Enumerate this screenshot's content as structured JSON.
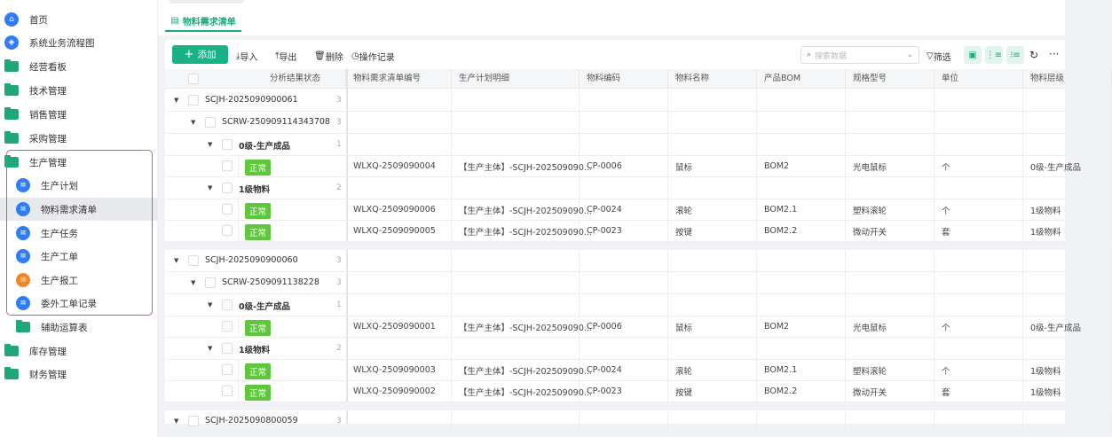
{
  "sidebar": {
    "items": [
      {
        "label": "首页",
        "icon": "home-icon",
        "type": "circle",
        "color": "#2f7df6",
        "symbol": "⌂"
      },
      {
        "label": "系统业务流程图",
        "icon": "box-icon",
        "type": "circle",
        "color": "#2f7df6",
        "symbol": "◈"
      },
      {
        "label": "经营看板",
        "icon": "folder-icon",
        "type": "folder"
      },
      {
        "label": "技术管理",
        "icon": "folder-icon",
        "type": "folder"
      },
      {
        "label": "销售管理",
        "icon": "folder-icon",
        "type": "folder"
      },
      {
        "label": "采购管理",
        "icon": "folder-icon",
        "type": "folder"
      },
      {
        "label": "生产管理",
        "icon": "folder-icon",
        "type": "folder"
      },
      {
        "label": "生产计划",
        "icon": "document-icon",
        "type": "sub",
        "color": "#2f7df6",
        "symbol": "≡"
      },
      {
        "label": "物料需求清单",
        "icon": "document-icon",
        "type": "sub",
        "color": "#2f7df6",
        "symbol": "≡",
        "active": true
      },
      {
        "label": "生产任务",
        "icon": "document-icon",
        "type": "sub",
        "color": "#2f7df6",
        "symbol": "≡"
      },
      {
        "label": "生产工单",
        "icon": "document-icon",
        "type": "sub",
        "color": "#2f7df6",
        "symbol": "≡"
      },
      {
        "label": "生产报工",
        "icon": "document-icon",
        "type": "sub",
        "color": "#f0882a",
        "symbol": "≡"
      },
      {
        "label": "委外工单记录",
        "icon": "document-icon",
        "type": "sub",
        "color": "#2f7df6",
        "symbol": "≡"
      },
      {
        "label": "辅助运算表",
        "icon": "folder-icon",
        "type": "subfolder"
      },
      {
        "label": "库存管理",
        "icon": "folder-icon",
        "type": "folder"
      },
      {
        "label": "财务管理",
        "icon": "folder-icon",
        "type": "folder"
      }
    ]
  },
  "tab": {
    "label": "物料需求清单"
  },
  "toolbar": {
    "add": "添加",
    "import": "导入",
    "export": "导出",
    "delete": "删除",
    "log": "操作记录",
    "search_placeholder": "搜索数据",
    "filter": "筛选"
  },
  "table": {
    "columns": [
      "分析结果状态",
      "物料需求清单编号",
      "生产计划明细",
      "物料编码",
      "物料名称",
      "产品BOM",
      "规格型号",
      "单位",
      "物料层级"
    ],
    "rows": [
      {
        "kind": "group",
        "level": 0,
        "label": "SCJH-2025090900061",
        "count": "3"
      },
      {
        "kind": "group",
        "level": 1,
        "label": "SCRW-250909114343708",
        "count": "3"
      },
      {
        "kind": "group",
        "level": 2,
        "label": "0级-生产成品",
        "count": "1",
        "bold": true
      },
      {
        "kind": "data",
        "status": "正常",
        "cells": [
          "WLXQ-2509090004",
          "【生产主体】-SCJH-202509090...",
          "CP-0006",
          "鼠标",
          "BOM2",
          "光电鼠标",
          "个",
          "0级-生产成品"
        ]
      },
      {
        "kind": "group",
        "level": 2,
        "label": "1级物料",
        "count": "2",
        "bold": true
      },
      {
        "kind": "data",
        "status": "正常",
        "cells": [
          "WLXQ-2509090006",
          "【生产主体】-SCJH-202509090...",
          "CP-0024",
          "滚轮",
          "BOM2.1",
          "塑料滚轮",
          "个",
          "1级物料"
        ]
      },
      {
        "kind": "data",
        "status": "正常",
        "cells": [
          "WLXQ-2509090005",
          "【生产主体】-SCJH-202509090...",
          "CP-0023",
          "按键",
          "BOM2.2",
          "微动开关",
          "套",
          "1级物料"
        ]
      },
      {
        "kind": "gap"
      },
      {
        "kind": "group",
        "level": 0,
        "label": "SCJH-2025090900060",
        "count": "3"
      },
      {
        "kind": "group",
        "level": 1,
        "label": "SCRW-2509091138228",
        "count": "3"
      },
      {
        "kind": "group",
        "level": 2,
        "label": "0级-生产成品",
        "count": "1",
        "bold": true
      },
      {
        "kind": "data",
        "status": "正常",
        "cells": [
          "WLXQ-2509090001",
          "【生产主体】-SCJH-202509090...",
          "CP-0006",
          "鼠标",
          "BOM2",
          "光电鼠标",
          "个",
          "0级-生产成品"
        ]
      },
      {
        "kind": "group",
        "level": 2,
        "label": "1级物料",
        "count": "2",
        "bold": true
      },
      {
        "kind": "data",
        "status": "正常",
        "cells": [
          "WLXQ-2509090003",
          "【生产主体】-SCJH-202509090...",
          "CP-0024",
          "滚轮",
          "BOM2.1",
          "塑料滚轮",
          "个",
          "1级物料"
        ]
      },
      {
        "kind": "data",
        "status": "正常",
        "cells": [
          "WLXQ-2509090002",
          "【生产主体】-SCJH-202509090...",
          "CP-0023",
          "按键",
          "BOM2.2",
          "微动开关",
          "套",
          "1级物料"
        ]
      },
      {
        "kind": "gap"
      },
      {
        "kind": "group",
        "level": 0,
        "label": "SCJH-2025090800059",
        "count": "3"
      }
    ]
  },
  "colors": {
    "accent": "#19b287",
    "status_ok": "#5ec73c",
    "highlight_box": "#e0603e"
  }
}
